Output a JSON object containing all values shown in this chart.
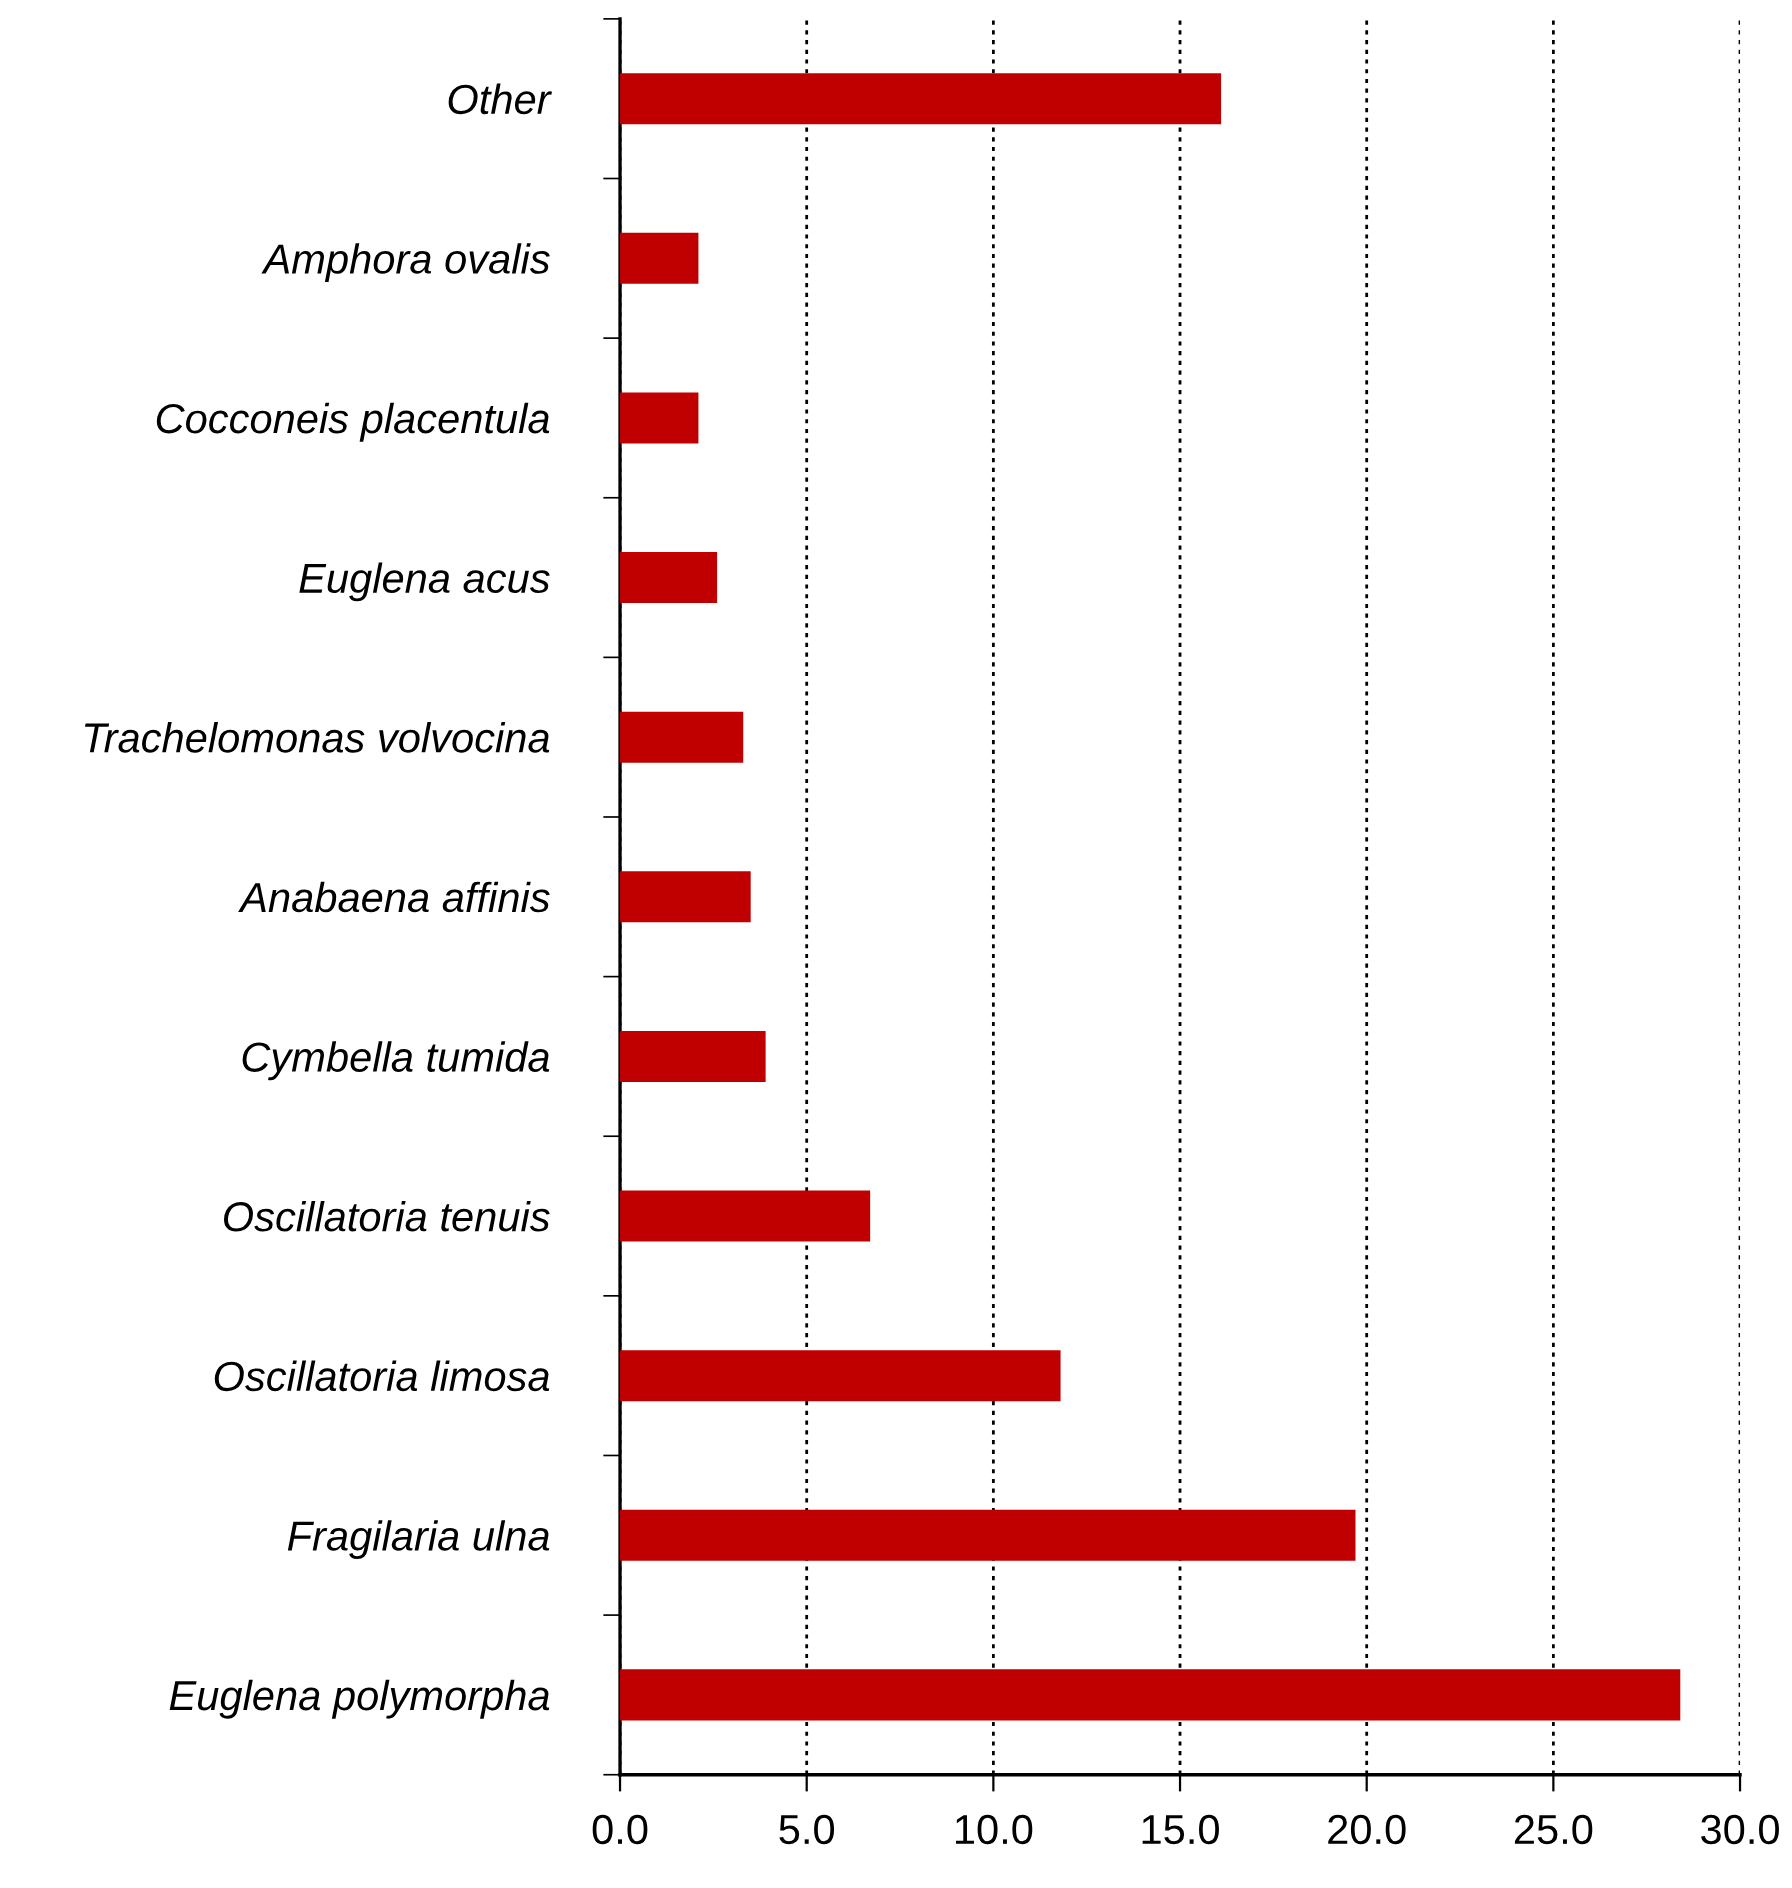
{
  "chart_data": {
    "type": "bar",
    "orientation": "horizontal",
    "categories": [
      "Other",
      "Amphora ovalis",
      "Cocconeis placentula",
      "Euglena acus",
      "Trachelomonas volvocina",
      "Anabaena affinis",
      "Cymbella tumida",
      "Oscillatoria tenuis",
      "Oscillatoria limosa",
      "Fragilaria ulna",
      "Euglena polymorpha"
    ],
    "values": [
      16.1,
      2.1,
      2.1,
      2.6,
      3.3,
      3.5,
      3.9,
      6.7,
      11.8,
      19.7,
      28.4
    ],
    "color": "#c00000",
    "xlim": [
      0,
      30
    ],
    "xticks": [
      {
        "value": 0,
        "label": "0.0"
      },
      {
        "value": 5,
        "label": "5.0"
      },
      {
        "value": 10,
        "label": "10.0"
      },
      {
        "value": 15,
        "label": "15.0"
      },
      {
        "value": 20,
        "label": "20.0"
      },
      {
        "value": 25,
        "label": "25.0"
      },
      {
        "value": 30,
        "label": "30.0"
      }
    ],
    "grid": "x"
  }
}
